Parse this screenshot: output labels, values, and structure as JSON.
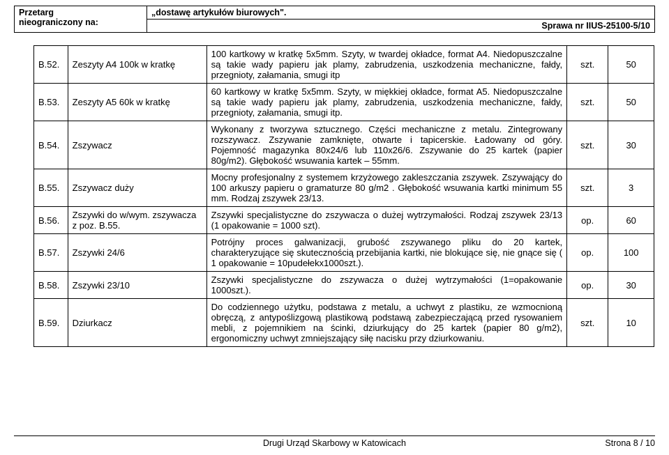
{
  "header": {
    "label1": "Przetarg",
    "label2": "nieograniczony na:",
    "title": "„dostawę artykułów biurowych\".",
    "reference": "Sprawa nr IIUS-25100-5/10"
  },
  "rows": [
    {
      "num": "B.52.",
      "name": "Zeszyty A4 100k w kratkę",
      "desc": "100 kartkowy w kratkę 5x5mm. Szyty, w twardej okładce, format A4. Niedopuszczalne są takie wady papieru jak plamy, zabrudzenia, uszkodzenia mechaniczne, fałdy, przegnioty, załamania, smugi itp",
      "unit": "szt.",
      "qty": "50"
    },
    {
      "num": "B.53.",
      "name": "Zeszyty A5 60k  w kratkę",
      "desc": "60 kartkowy w kratkę 5x5mm. Szyty, w miękkiej okładce, format A5. Niedopuszczalne są takie wady papieru jak plamy, zabrudzenia, uszkodzenia mechaniczne, fałdy, przegnioty, załamania, smugi itp.",
      "unit": "szt.",
      "qty": "50"
    },
    {
      "num": "B.54.",
      "name": "Zszywacz",
      "desc": "Wykonany z tworzywa sztucznego. Części mechaniczne z metalu. Zintegrowany rozszywacz. Zszywanie zamknięte, otwarte i tapicerskie. Ładowany od góry. Pojemność magazynka 80x24/6 lub 110x26/6. Zszywanie do 25 kartek (papier 80g/m2). Głębokość wsuwania kartek – 55mm.",
      "unit": "szt.",
      "qty": "30"
    },
    {
      "num": "B.55.",
      "name": "Zszywacz duży",
      "desc": "Mocny profesjonalny z systemem krzyżowego zakleszczania zszywek. Zszywający do 100 arkuszy papieru o gramaturze 80 g/m2 . Głębokość wsuwania kartki minimum 55 mm.  Rodzaj zszywek 23/13.",
      "unit": "szt.",
      "qty": "3"
    },
    {
      "num": "B.56.",
      "name": "Zszywki do w/wym. zszywacza z poz. B.55.",
      "desc": "Zszywki specjalistyczne do zszywacza o dużej wytrzymałości. Rodzaj zszywek 23/13 (1 opakowanie = 1000 szt).",
      "unit": "op.",
      "qty": "60"
    },
    {
      "num": "B.57.",
      "name": "Zszywki 24/6",
      "desc": "Potrójny proces galwanizacji, grubość zszywanego pliku do 20 kartek, charakteryzujące się skutecznością przebijania kartki, nie blokujące się, nie gnące się ( 1 opakowanie = 10pudełekx1000szt.).",
      "unit": "op.",
      "qty": "100"
    },
    {
      "num": "B.58.",
      "name": "Zszywki 23/10",
      "desc": "Zszywki specjalistyczne do zszywacza o dużej wytrzymałości (1=opakowanie 1000szt.).",
      "unit": "op.",
      "qty": "30"
    },
    {
      "num": "B.59.",
      "name": "Dziurkacz",
      "desc": "Do codziennego użytku, podstawa z metalu, a uchwyt z plastiku, ze wzmocnioną obręczą, z antypoślizgową plastikową podstawą zabezpieczającą przed rysowaniem mebli, z pojemnikiem na ścinki, dziurkujący do 25 kartek (papier 80 g/m2), ergonomiczny uchwyt zmniejszający siłę nacisku przy dziurkowaniu.",
      "unit": "szt.",
      "qty": "10"
    }
  ],
  "footer": {
    "office": "Drugi Urząd Skarbowy w Katowicach",
    "page": "Strona 8 / 10"
  }
}
